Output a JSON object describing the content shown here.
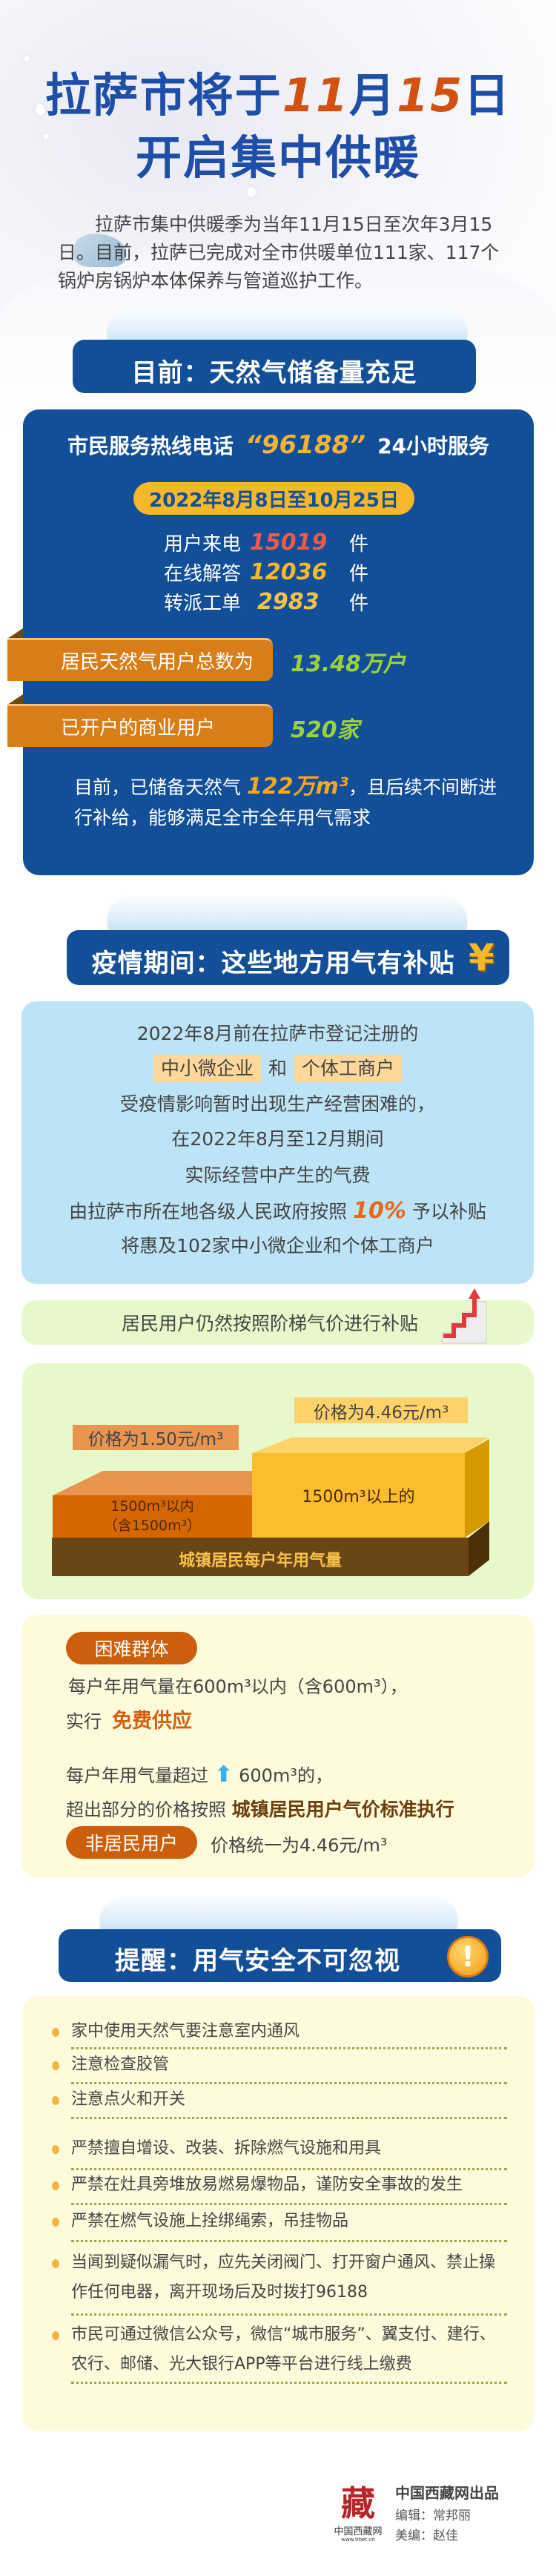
{
  "header": {
    "title_line1": [
      "拉萨市将于",
      "11",
      "月",
      "15",
      "日"
    ],
    "title_line2": "开启集中供暖",
    "intro": "拉萨市集中供暖季为当年11月15日至次年3月15日。目前，拉萨已完成对全市供暖单位111家、117个锅炉房锅炉本体保养与管道巡护工作。"
  },
  "section1": {
    "heading": "目前：天然气储备量充足",
    "hotline": {
      "prefix": "市民服务热线电话",
      "number": "“96188”",
      "suffix": "24小时服务"
    },
    "period": "2022年8月8日至10月25日",
    "stats": [
      {
        "label": "用户来电",
        "value": "15019",
        "unit": "件",
        "color": "#ef5a4a"
      },
      {
        "label": "在线解答",
        "value": "12036",
        "unit": "件",
        "color": "#f5b82a"
      },
      {
        "label": "转派工单",
        "value": "2983",
        "unit": "件",
        "color": "#f5c24a"
      }
    ],
    "bars": [
      {
        "label": "居民天然气用户总数为",
        "value": "13.48万户"
      },
      {
        "label": "已开户的商业用户",
        "value": "520家"
      }
    ],
    "reserve": {
      "prefix": "目前，已储备天然气",
      "value": "122万m³",
      "suffix": "，且后续不间断进行补给，能够满足全市全年用气需求"
    }
  },
  "section2": {
    "heading": "疫情期间：这些地方用气有补贴",
    "icon": "yuan-icon",
    "lines": {
      "l1": "2022年8月前在拉萨市登记注册的",
      "hl1": "中小微企业",
      "and": "和",
      "hl2": "个体工商户",
      "l3": "受疫情影响暂时出现生产经营困难的，",
      "l4": "在2022年8月至12月期间",
      "l5": "实际经营中产生的气费",
      "l6a": "由拉萨市所在地各级人民政府按照",
      "pct": "10%",
      "l6b": "予以补贴",
      "l7": "将惠及102家中小微企业和个体工商户"
    },
    "resident_note": "居民用户仍然按照阶梯气价进行补贴"
  },
  "tiers": {
    "price_low": "价格为1.50元/m³",
    "price_high": "价格为4.46元/m³",
    "tier_low": [
      "1500m³以内",
      "（含1500m³）"
    ],
    "tier_high": "1500m³以上的",
    "base": "城镇居民每户年用气量"
  },
  "special": {
    "group_label": "困难群体",
    "line1": "每户年用气量在600m³以内（含600m³），",
    "line2_prefix": "实行",
    "line2_em": "免费供应",
    "line3a": "每户年用气量超过",
    "line3b": "600m³的，",
    "line4_prefix": "超出部分的价格按照",
    "line4_em": "城镇居民用户气价标准执行",
    "nonres_label": "非居民用户",
    "nonres_text": "价格统一为4.46元/m³"
  },
  "section3": {
    "heading": "提醒：用气安全不可忽视",
    "icon": "exclamation-icon",
    "tips": [
      "家中使用天然气要注意室内通风",
      "注意检查胶管",
      "注意点火和开关",
      "严禁擅自增设、改装、拆除燃气设施和用具",
      "严禁在灶具旁堆放易燃易爆物品，谨防安全事故的发生",
      "严禁在燃气设施上拴绑绳索，吊挂物品",
      "当闻到疑似漏气时，应先关闭阀门、打开窗户通风、禁止操作任何电器，离开现场后及时拨打96188",
      "市民可通过微信公众号，微信“城市服务”、翼支付、建行、农行、邮储、光大银行APP等平台进行线上缴费"
    ]
  },
  "footer": {
    "logo_text": "中国西藏网",
    "logo_url": "www.tibet.cn",
    "produced": "中国西藏网出品",
    "editor": "编辑：常邦丽",
    "designer": "美编：赵佳"
  }
}
